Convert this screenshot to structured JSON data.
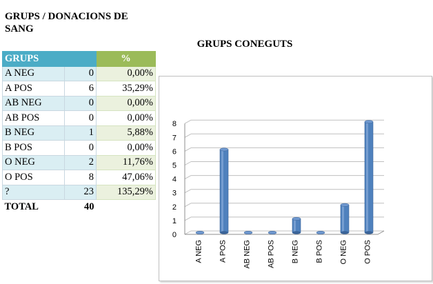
{
  "page_title": "GRUPS / DONACIONS DE SANG",
  "table": {
    "headers": {
      "group": "GRUPS",
      "pct": "%"
    },
    "rows": [
      {
        "group": "A NEG",
        "count": "0",
        "pct": "0,00%"
      },
      {
        "group": "A POS",
        "count": "6",
        "pct": "35,29%"
      },
      {
        "group": "AB NEG",
        "count": "0",
        "pct": "0,00%"
      },
      {
        "group": "AB POS",
        "count": "0",
        "pct": "0,00%"
      },
      {
        "group": "B NEG",
        "count": "1",
        "pct": "5,88%"
      },
      {
        "group": "B POS",
        "count": "0",
        "pct": "0,00%"
      },
      {
        "group": "O NEG",
        "count": "2",
        "pct": "11,76%"
      },
      {
        "group": "O POS",
        "count": "8",
        "pct": "47,06%"
      },
      {
        "group": "?",
        "count": "23",
        "pct": "135,29%"
      }
    ],
    "total": {
      "label": "TOTAL",
      "value": "40"
    }
  },
  "colors": {
    "header_blue": "#4bacc6",
    "header_green": "#9bbb59",
    "bar": "#4f81bd"
  },
  "chart_data": {
    "type": "bar",
    "title": "GRUPS CONEGUTS",
    "categories": [
      "A NEG",
      "A POS",
      "AB NEG",
      "AB POS",
      "B NEG",
      "B POS",
      "O NEG",
      "O POS"
    ],
    "values": [
      0,
      6,
      0,
      0,
      1,
      0,
      2,
      8
    ],
    "ylim": [
      0,
      8
    ],
    "yticks": [
      "0",
      "1",
      "2",
      "3",
      "4",
      "5",
      "6",
      "7",
      "8"
    ],
    "grid": true,
    "legend": "none"
  }
}
